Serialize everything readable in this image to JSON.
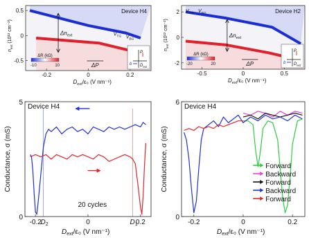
{
  "chart_data": [
    {
      "type": "heatmap",
      "device_label": "Device H4",
      "ylabel_main": "n",
      "ylabel_sub": "ext",
      "ylabel_unit": "(10¹² cm⁻²)",
      "xlabel_main": "D",
      "xlabel_sub": "ext",
      "xlabel_unit": "/ε₀ (V nm⁻¹)",
      "x_ticks": [
        "-0.2",
        "0",
        "0.2"
      ],
      "y_ticks": [
        "0.5",
        "0",
        "-0.5"
      ],
      "xlim": [
        -0.3,
        0.3
      ],
      "ylim": [
        -0.7,
        0.6
      ],
      "annotations": {
        "delta_n": "Δn",
        "delta_n_sub": "ext",
        "delta_p": "ΔP",
        "vtg": "V",
        "vtg_sub": "TG",
        "vbg": "V",
        "vbg_sub": "BG"
      },
      "colorbar": {
        "label": "ΔR (kΩ)",
        "min": "-10",
        "max": "10"
      },
      "blue_band": {
        "x": [
          -0.28,
          0.0,
          0.18,
          0.25
        ],
        "y": [
          0.5,
          0.2,
          0.05,
          -0.05
        ]
      },
      "red_band": {
        "x": [
          -0.25,
          0.05,
          0.2,
          0.27
        ],
        "y": [
          -0.05,
          -0.15,
          -0.3,
          -0.55
        ]
      },
      "inset": {
        "labels": [
          "P",
          "b",
          "D"
        ],
        "sub": "ext"
      }
    },
    {
      "type": "heatmap",
      "device_label": "Device H2",
      "ylabel_main": "n",
      "ylabel_sub": "ext",
      "ylabel_unit": "(10¹² cm⁻²)",
      "xlabel_main": "D",
      "xlabel_sub": "ext",
      "xlabel_unit": "/ε₀ (V nm⁻¹)",
      "x_ticks": [
        "-0.5",
        "0",
        "0.5"
      ],
      "y_ticks": [
        "2",
        "0",
        "-2"
      ],
      "xlim": [
        -0.75,
        0.75
      ],
      "ylim": [
        -2.5,
        2.5
      ],
      "annotations": {
        "delta_n": "Δn",
        "delta_n_sub": "ext",
        "delta_p": "ΔP",
        "vtg": "V",
        "vtg_sub": "TG",
        "vbg": "V",
        "vbg_sub": "BG"
      },
      "colorbar": {
        "label": "ΔR (kΩ)",
        "min": "-20",
        "max": "20"
      },
      "blue_band": {
        "x": [
          -0.7,
          -0.2,
          0.35,
          0.7
        ],
        "y": [
          2.0,
          1.5,
          0.8,
          -0.5
        ]
      },
      "red_band": {
        "x": [
          -0.7,
          -0.2,
          0.3,
          0.7
        ],
        "y": [
          -0.3,
          -0.6,
          -1.2,
          -1.8
        ]
      },
      "inset": {
        "labels": [
          "P",
          "b",
          "D"
        ],
        "sub": "ext"
      }
    },
    {
      "type": "line",
      "device_label": "Device H4",
      "ylabel": "Conductance, σ (mS)",
      "xlabel_main": "D",
      "xlabel_sub": "ext",
      "xlabel_unit": "/ε₀ (V nm⁻¹)",
      "x_ticks": [
        "-0.2",
        "0",
        "0.2"
      ],
      "y_ticks": [
        "5",
        "0"
      ],
      "xlim": [
        -0.24,
        0.24
      ],
      "ylim": [
        0,
        5
      ],
      "annotation": "20 cycles",
      "markers": [
        {
          "label": "D",
          "sub": "2",
          "x": -0.17
        },
        {
          "label": "D",
          "sub": "1",
          "x": 0.17
        }
      ],
      "series": [
        {
          "color": "#1f2fd6",
          "x": [
            -0.22,
            -0.215,
            -0.21,
            -0.205,
            -0.2,
            -0.195,
            -0.19,
            -0.18,
            -0.17,
            -0.16,
            -0.15,
            -0.14,
            -0.12,
            -0.1,
            -0.08,
            -0.06,
            -0.04,
            -0.02,
            0,
            0.02,
            0.04,
            0.06,
            0.08,
            0.1,
            0.12,
            0.14,
            0.16,
            0.18,
            0.2,
            0.21,
            0.22
          ],
          "y": [
            2.7,
            2.6,
            2.0,
            1.0,
            0.2,
            0.1,
            0.6,
            1.8,
            3.0,
            3.6,
            3.8,
            3.7,
            3.9,
            3.6,
            3.8,
            3.9,
            3.7,
            3.8,
            3.6,
            3.9,
            3.8,
            3.7,
            3.9,
            3.8,
            3.9,
            3.8,
            3.9,
            4.0,
            3.9,
            4.1,
            4.0
          ]
        },
        {
          "color": "#e5232a",
          "x": [
            -0.22,
            -0.2,
            -0.18,
            -0.16,
            -0.14,
            -0.12,
            -0.1,
            -0.08,
            -0.06,
            -0.04,
            -0.02,
            0,
            0.02,
            0.04,
            0.06,
            0.08,
            0.1,
            0.12,
            0.14,
            0.16,
            0.17,
            0.18,
            0.19,
            0.2,
            0.205,
            0.21,
            0.215,
            0.22
          ],
          "y": [
            2.6,
            2.7,
            2.6,
            2.7,
            2.5,
            2.7,
            2.6,
            2.5,
            2.7,
            2.6,
            2.7,
            2.6,
            2.5,
            2.7,
            2.6,
            2.4,
            2.5,
            2.6,
            2.7,
            2.6,
            2.5,
            2.3,
            1.4,
            0.4,
            0.1,
            0.9,
            2.2,
            3.2
          ]
        }
      ]
    },
    {
      "type": "line",
      "device_label": "Device H4",
      "ylabel": "Conductance, σ (mS)",
      "xlabel_main": "D",
      "xlabel_sub": "ext",
      "xlabel_unit": "/ε₀ (V nm⁻¹)",
      "x_ticks": [
        "-0.2",
        "0",
        "0.2"
      ],
      "y_ticks": [
        "6",
        "0"
      ],
      "xlim": [
        -0.25,
        0.25
      ],
      "ylim": [
        0,
        6
      ],
      "legend_position": "bottom-right",
      "series": [
        {
          "name": "Forward",
          "color": "#2ecc40",
          "x": [
            0,
            0.02,
            0.04,
            0.05,
            0.06,
            0.07,
            0.08,
            0.1,
            0.12,
            0.14,
            0.15,
            0.16,
            0.17,
            0.18,
            0.19,
            0.2,
            0.22,
            0.24
          ],
          "y": [
            5.0,
            5.0,
            4.8,
            3.5,
            2.6,
            3.4,
            4.6,
            5.0,
            4.9,
            4.0,
            2.5,
            1.0,
            0.2,
            0.6,
            2.0,
            3.8,
            5.0,
            5.1
          ]
        },
        {
          "name": "Backward",
          "color": "#e83ce0",
          "x": [
            0,
            0.03,
            0.06,
            0.09,
            0.12,
            0.15,
            0.18,
            0.21,
            0.24
          ],
          "y": [
            5.4,
            5.3,
            5.5,
            5.4,
            5.2,
            5.5,
            5.3,
            5.5,
            5.4
          ]
        },
        {
          "name": "Forward",
          "color": "#111111",
          "x": [
            0,
            0.03,
            0.06,
            0.09,
            0.12,
            0.15,
            0.18,
            0.21,
            0.24
          ],
          "y": [
            5.2,
            5.3,
            5.1,
            5.4,
            5.3,
            5.2,
            5.3,
            5.4,
            5.3
          ]
        },
        {
          "name": "Backward",
          "color": "#1f2fd6",
          "x": [
            -0.24,
            -0.23,
            -0.22,
            -0.21,
            -0.2,
            -0.19,
            -0.18,
            -0.17,
            -0.16,
            -0.15,
            -0.14,
            -0.12,
            -0.1,
            -0.08,
            -0.06,
            -0.04,
            -0.02,
            0,
            0.03,
            0.06,
            0.09,
            0.12,
            0.15,
            0.18,
            0.21,
            0.24
          ],
          "y": [
            4.4,
            4.0,
            3.0,
            1.5,
            0.2,
            0.8,
            2.5,
            4.0,
            4.6,
            4.7,
            4.8,
            5.0,
            4.7,
            5.2,
            4.9,
            5.1,
            5.3,
            4.9,
            5.2,
            5.0,
            5.3,
            5.1,
            5.2,
            5.0,
            5.3,
            5.1
          ]
        },
        {
          "name": "Forward",
          "color": "#e5232a",
          "x": [
            -0.24,
            -0.22,
            -0.2,
            -0.18,
            -0.16,
            -0.14,
            -0.12,
            -0.1,
            -0.08,
            -0.06,
            -0.04,
            -0.02,
            0
          ],
          "y": [
            4.5,
            4.6,
            4.5,
            4.7,
            4.6,
            4.7,
            4.6,
            4.8,
            4.7,
            4.8,
            4.9,
            5.0,
            5.0
          ]
        }
      ]
    }
  ]
}
